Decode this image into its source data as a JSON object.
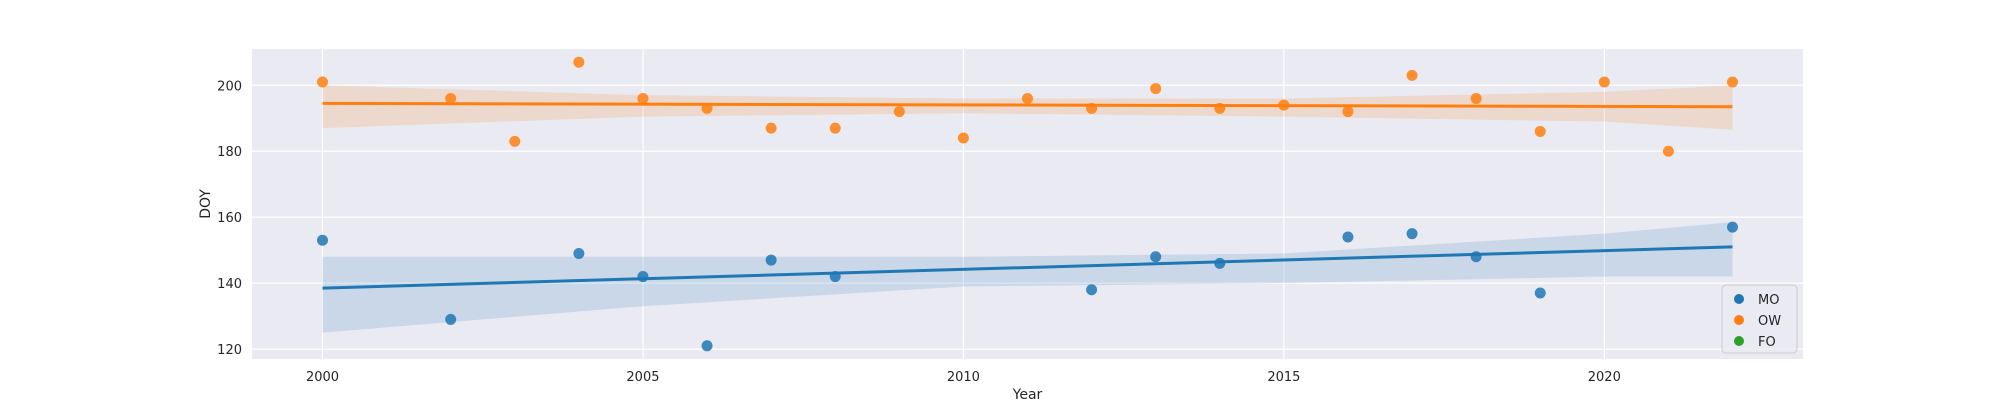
{
  "chart_data": {
    "type": "scatter",
    "title": "",
    "xlabel": "Year",
    "ylabel": "DOY",
    "xlim": [
      1998.9,
      2023.1
    ],
    "ylim": [
      117,
      211
    ],
    "xticks": [
      2000,
      2005,
      2010,
      2015,
      2020
    ],
    "yticks": [
      120,
      140,
      160,
      180,
      200
    ],
    "grid": true,
    "legend_position": "lower-right",
    "series": [
      {
        "name": "MO",
        "color": "#1f77b4",
        "x": [
          2000,
          2002,
          2004,
          2005,
          2006,
          2007,
          2008,
          2012,
          2013,
          2014,
          2016,
          2017,
          2018,
          2019,
          2022
        ],
        "y": [
          153,
          129,
          149,
          142,
          121,
          147,
          142,
          138,
          148,
          146,
          154,
          155,
          148,
          137,
          157
        ],
        "regression": {
          "x": [
            2000,
            2022
          ],
          "y": [
            138.5,
            151
          ]
        },
        "ci_band": {
          "x": [
            2000,
            2005,
            2010,
            2015,
            2020,
            2022
          ],
          "upper": [
            148,
            148,
            148,
            149,
            155,
            158.5
          ],
          "lower": [
            125,
            133,
            139,
            140,
            142,
            142
          ]
        }
      },
      {
        "name": "OW",
        "color": "#ff7f0e",
        "x": [
          2000,
          2002,
          2003,
          2004,
          2005,
          2006,
          2007,
          2008,
          2009,
          2010,
          2011,
          2012,
          2013,
          2014,
          2015,
          2016,
          2017,
          2018,
          2019,
          2020,
          2021,
          2022
        ],
        "y": [
          201,
          196,
          183,
          207,
          196,
          193,
          187,
          187,
          192,
          184,
          196,
          193,
          199,
          193,
          194,
          192,
          203,
          196,
          186,
          201,
          180,
          201
        ],
        "regression": {
          "x": [
            2000,
            2022
          ],
          "y": [
            194.5,
            193.5
          ]
        },
        "ci_band": {
          "x": [
            2000,
            2005,
            2010,
            2015,
            2020,
            2022
          ],
          "upper": [
            200,
            197,
            196,
            196,
            198,
            200
          ],
          "lower": [
            187,
            190.5,
            191.5,
            190.5,
            189,
            186.5
          ]
        }
      },
      {
        "name": "FO",
        "color": "#2ca02c",
        "x": [],
        "y": []
      }
    ]
  }
}
